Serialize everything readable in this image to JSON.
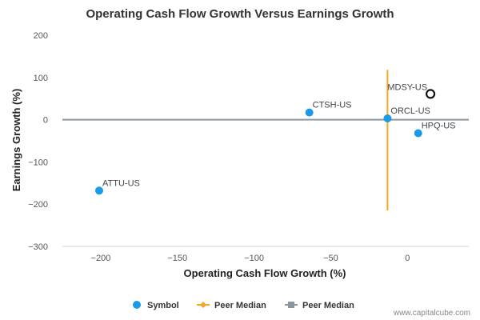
{
  "chart_data": {
    "type": "scatter",
    "title": "Operating Cash Flow Growth Versus Earnings Growth",
    "xlabel": "Operating Cash Flow Growth (%)",
    "ylabel": "Earnings Growth (%)",
    "xlim": [
      -225,
      40
    ],
    "ylim": [
      -300,
      200
    ],
    "xticks": [
      -200,
      -150,
      -100,
      -50,
      0
    ],
    "yticks": [
      200,
      100,
      0,
      -100,
      -200,
      -300
    ],
    "grid": false,
    "points": [
      {
        "label": "ATTU-US",
        "x": -201,
        "y": -168,
        "highlight": false
      },
      {
        "label": "CTSH-US",
        "x": -64,
        "y": 17,
        "highlight": false
      },
      {
        "label": "ORCL-US",
        "x": -13,
        "y": 3,
        "highlight": false
      },
      {
        "label": "HPQ-US",
        "x": 7,
        "y": -32,
        "highlight": false
      },
      {
        "label": "MDSY-US",
        "x": 15,
        "y": 61,
        "highlight": true
      }
    ],
    "peer_median_x": -13,
    "peer_median_y": 0,
    "peer_median_x_span": [
      -215,
      118
    ],
    "series": [
      {
        "name": "Symbol",
        "color": "#1a9be8",
        "marker": "circle"
      },
      {
        "name": "Peer Median",
        "color": "#f5a623",
        "marker": "diamond-line"
      },
      {
        "name": "Peer Median",
        "color": "#8c96a0",
        "marker": "square-line"
      }
    ]
  },
  "watermark": "www.capitalcube.com"
}
